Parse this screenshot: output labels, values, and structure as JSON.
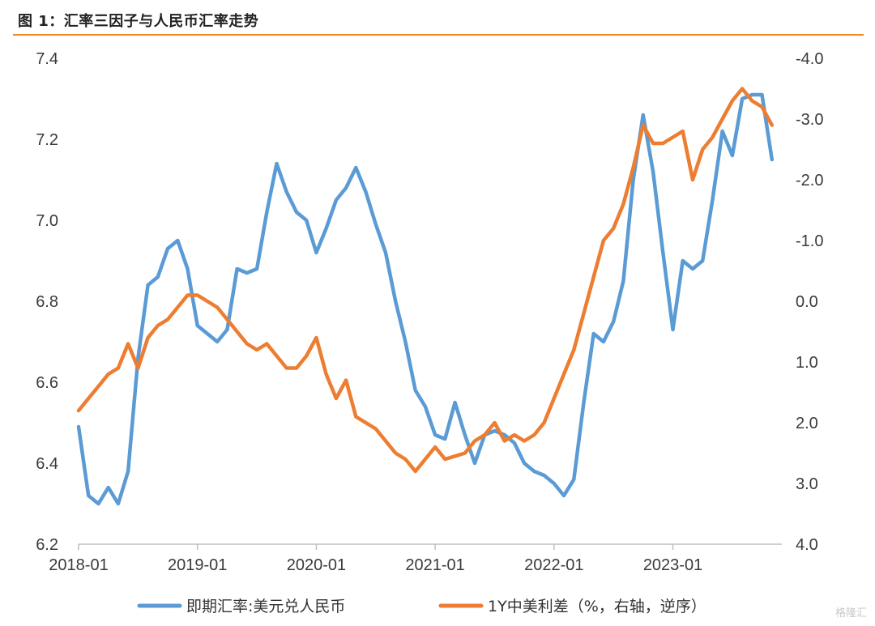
{
  "title": "图 1：汇率三因子与人民币汇率走势",
  "watermark": "格隆汇",
  "colors": {
    "usdcny": "#5b9bd5",
    "spread": "#ed7d31",
    "rule": "#f08a24",
    "axis": "#bfbfbf"
  },
  "chart_data": {
    "type": "line",
    "title": "图 1：汇率三因子与人民币汇率走势",
    "x_ticks": [
      "2018-01",
      "2019-01",
      "2020-01",
      "2021-01",
      "2022-01",
      "2023-01"
    ],
    "x_range": [
      "2018-01",
      "2023-12"
    ],
    "y_left": {
      "lim": [
        6.2,
        7.4
      ],
      "ticks": [
        "6.2",
        "6.4",
        "6.6",
        "6.8",
        "7.0",
        "7.2",
        "7.4"
      ]
    },
    "y_right": {
      "lim": [
        4.0,
        -4.0
      ],
      "inverted": true,
      "ticks": [
        "4.0",
        "3.0",
        "2.0",
        "1.0",
        "0.0",
        "-1.0",
        "-2.0",
        "-3.0",
        "-4.0"
      ]
    },
    "legend_position": "bottom",
    "series": [
      {
        "name": "即期汇率:美元兑人民币",
        "axis": "left",
        "points": [
          [
            "2018-01",
            6.49
          ],
          [
            "2018-02",
            6.32
          ],
          [
            "2018-03",
            6.3
          ],
          [
            "2018-04",
            6.34
          ],
          [
            "2018-05",
            6.3
          ],
          [
            "2018-06",
            6.38
          ],
          [
            "2018-07",
            6.66
          ],
          [
            "2018-08",
            6.84
          ],
          [
            "2018-09",
            6.86
          ],
          [
            "2018-10",
            6.93
          ],
          [
            "2018-11",
            6.95
          ],
          [
            "2018-12",
            6.88
          ],
          [
            "2019-01",
            6.74
          ],
          [
            "2019-02",
            6.72
          ],
          [
            "2019-03",
            6.7
          ],
          [
            "2019-04",
            6.73
          ],
          [
            "2019-05",
            6.88
          ],
          [
            "2019-06",
            6.87
          ],
          [
            "2019-07",
            6.88
          ],
          [
            "2019-08",
            7.02
          ],
          [
            "2019-09",
            7.14
          ],
          [
            "2019-10",
            7.07
          ],
          [
            "2019-11",
            7.02
          ],
          [
            "2019-12",
            7.0
          ],
          [
            "2020-01",
            6.92
          ],
          [
            "2020-02",
            6.98
          ],
          [
            "2020-03",
            7.05
          ],
          [
            "2020-04",
            7.08
          ],
          [
            "2020-05",
            7.13
          ],
          [
            "2020-06",
            7.07
          ],
          [
            "2020-07",
            6.99
          ],
          [
            "2020-08",
            6.92
          ],
          [
            "2020-09",
            6.8
          ],
          [
            "2020-10",
            6.7
          ],
          [
            "2020-11",
            6.58
          ],
          [
            "2020-12",
            6.54
          ],
          [
            "2021-01",
            6.47
          ],
          [
            "2021-02",
            6.46
          ],
          [
            "2021-03",
            6.55
          ],
          [
            "2021-04",
            6.47
          ],
          [
            "2021-05",
            6.4
          ],
          [
            "2021-06",
            6.47
          ],
          [
            "2021-07",
            6.48
          ],
          [
            "2021-08",
            6.47
          ],
          [
            "2021-09",
            6.45
          ],
          [
            "2021-10",
            6.4
          ],
          [
            "2021-11",
            6.38
          ],
          [
            "2021-12",
            6.37
          ],
          [
            "2022-01",
            6.35
          ],
          [
            "2022-02",
            6.32
          ],
          [
            "2022-03",
            6.36
          ],
          [
            "2022-04",
            6.55
          ],
          [
            "2022-05",
            6.72
          ],
          [
            "2022-06",
            6.7
          ],
          [
            "2022-07",
            6.75
          ],
          [
            "2022-08",
            6.85
          ],
          [
            "2022-09",
            7.1
          ],
          [
            "2022-10",
            7.26
          ],
          [
            "2022-11",
            7.12
          ],
          [
            "2022-12",
            6.92
          ],
          [
            "2023-01",
            6.73
          ],
          [
            "2023-02",
            6.9
          ],
          [
            "2023-03",
            6.88
          ],
          [
            "2023-04",
            6.9
          ],
          [
            "2023-05",
            7.05
          ],
          [
            "2023-06",
            7.22
          ],
          [
            "2023-07",
            7.16
          ],
          [
            "2023-08",
            7.3
          ],
          [
            "2023-09",
            7.31
          ],
          [
            "2023-10",
            7.31
          ],
          [
            "2023-11",
            7.15
          ]
        ]
      },
      {
        "name": "1Y中美利差（%，右轴，逆序）",
        "axis": "right",
        "points": [
          [
            "2018-01",
            1.8
          ],
          [
            "2018-02",
            1.6
          ],
          [
            "2018-03",
            1.4
          ],
          [
            "2018-04",
            1.2
          ],
          [
            "2018-05",
            1.1
          ],
          [
            "2018-06",
            0.7
          ],
          [
            "2018-07",
            1.1
          ],
          [
            "2018-08",
            0.6
          ],
          [
            "2018-09",
            0.4
          ],
          [
            "2018-10",
            0.3
          ],
          [
            "2018-11",
            0.1
          ],
          [
            "2018-12",
            -0.1
          ],
          [
            "2019-01",
            -0.1
          ],
          [
            "2019-02",
            0.0
          ],
          [
            "2019-03",
            0.1
          ],
          [
            "2019-04",
            0.3
          ],
          [
            "2019-05",
            0.5
          ],
          [
            "2019-06",
            0.7
          ],
          [
            "2019-07",
            0.8
          ],
          [
            "2019-08",
            0.7
          ],
          [
            "2019-09",
            0.9
          ],
          [
            "2019-10",
            1.1
          ],
          [
            "2019-11",
            1.1
          ],
          [
            "2019-12",
            0.9
          ],
          [
            "2020-01",
            0.6
          ],
          [
            "2020-02",
            1.2
          ],
          [
            "2020-03",
            1.6
          ],
          [
            "2020-04",
            1.3
          ],
          [
            "2020-05",
            1.9
          ],
          [
            "2020-06",
            2.0
          ],
          [
            "2020-07",
            2.1
          ],
          [
            "2020-08",
            2.3
          ],
          [
            "2020-09",
            2.5
          ],
          [
            "2020-10",
            2.6
          ],
          [
            "2020-11",
            2.8
          ],
          [
            "2020-12",
            2.6
          ],
          [
            "2021-01",
            2.4
          ],
          [
            "2021-02",
            2.6
          ],
          [
            "2021-03",
            2.55
          ],
          [
            "2021-04",
            2.5
          ],
          [
            "2021-05",
            2.3
          ],
          [
            "2021-06",
            2.2
          ],
          [
            "2021-07",
            2.0
          ],
          [
            "2021-08",
            2.3
          ],
          [
            "2021-09",
            2.2
          ],
          [
            "2021-10",
            2.3
          ],
          [
            "2021-11",
            2.2
          ],
          [
            "2021-12",
            2.0
          ],
          [
            "2022-01",
            1.6
          ],
          [
            "2022-02",
            1.2
          ],
          [
            "2022-03",
            0.8
          ],
          [
            "2022-04",
            0.2
          ],
          [
            "2022-05",
            -0.4
          ],
          [
            "2022-06",
            -1.0
          ],
          [
            "2022-07",
            -1.2
          ],
          [
            "2022-08",
            -1.6
          ],
          [
            "2022-09",
            -2.2
          ],
          [
            "2022-10",
            -2.9
          ],
          [
            "2022-11",
            -2.6
          ],
          [
            "2022-12",
            -2.6
          ],
          [
            "2023-01",
            -2.7
          ],
          [
            "2023-02",
            -2.8
          ],
          [
            "2023-03",
            -2.0
          ],
          [
            "2023-04",
            -2.5
          ],
          [
            "2023-05",
            -2.7
          ],
          [
            "2023-06",
            -3.0
          ],
          [
            "2023-07",
            -3.3
          ],
          [
            "2023-08",
            -3.5
          ],
          [
            "2023-09",
            -3.3
          ],
          [
            "2023-10",
            -3.2
          ],
          [
            "2023-11",
            -2.9
          ]
        ]
      }
    ]
  }
}
